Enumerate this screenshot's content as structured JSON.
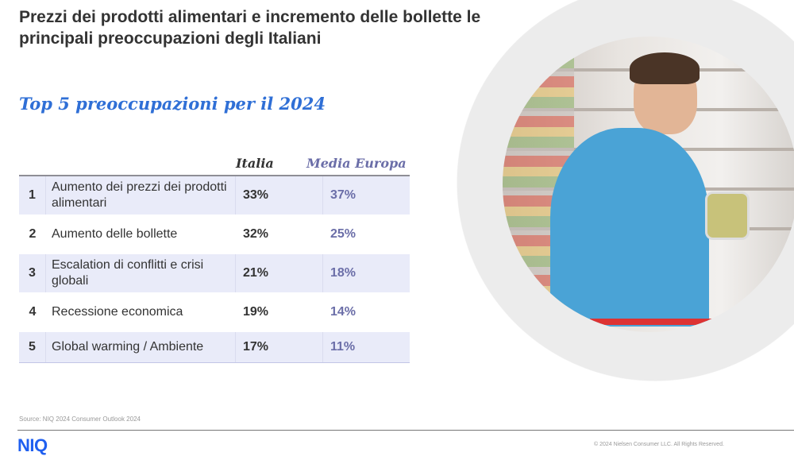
{
  "title": "Prezzi dei prodotti alimentari e incremento delle bollette le principali preoccupazioni degli Italiani",
  "subtitle": "Top 5 preoccupazioni per il 2024",
  "table": {
    "headers": {
      "italia": "Italia",
      "europa": "Media Europa"
    },
    "rows": [
      {
        "rank": "1",
        "label": "Aumento dei prezzi dei prodotti alimentari",
        "italia": "33%",
        "europa": "37%"
      },
      {
        "rank": "2",
        "label": "Aumento delle bollette",
        "italia": "32%",
        "europa": "25%"
      },
      {
        "rank": "3",
        "label": "Escalation di conflitti e crisi globali",
        "italia": "21%",
        "europa": "18%"
      },
      {
        "rank": "4",
        "label": "Recessione economica",
        "italia": "19%",
        "europa": "14%"
      },
      {
        "rank": "5",
        "label": "Global warming / Ambiente",
        "italia": "17%",
        "europa": "11%"
      }
    ]
  },
  "source": "Source: NIQ 2024 Consumer Outlook 2024",
  "logo": "NIQ",
  "copyright": "© 2024 Nielsen Consumer LLC. All Rights Reserved.",
  "colors": {
    "accent": "#2f6fd6",
    "europa": "#6b6ea8",
    "row_shade": "#e9ebf9",
    "logo": "#1f5ff0"
  }
}
